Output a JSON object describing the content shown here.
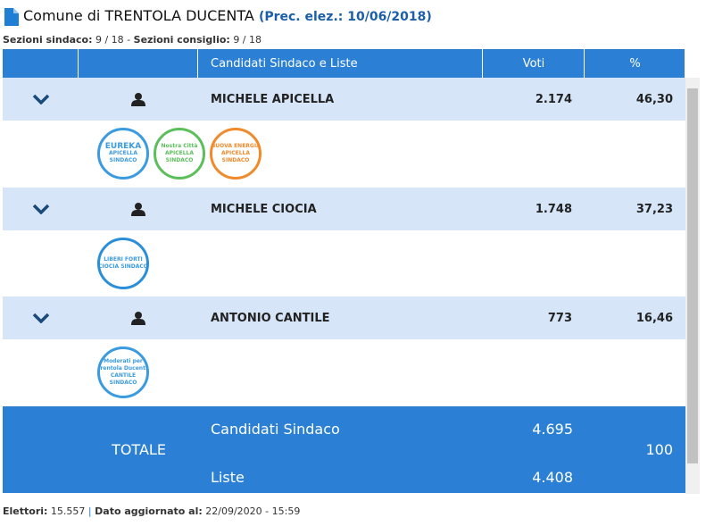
{
  "header": {
    "title": "Comune di TRENTOLA DUCENTA",
    "previous": "(Prec. elez.: 10/06/2018)"
  },
  "sections": {
    "mayor_label": "Sezioni sindaco:",
    "mayor_value": "9 / 18",
    "separator": "-",
    "council_label": "Sezioni consiglio:",
    "council_value": "9 / 18"
  },
  "table": {
    "columns": [
      "Candidati Sindaco e Liste",
      "Voti",
      "%"
    ],
    "rows": [
      {
        "name": "MICHELE APICELLA",
        "votes": "2.174",
        "percent": "46,30",
        "logos": [
          [
            "EUREKA",
            "APICELLA",
            "SINDACO"
          ],
          [
            "Nostra Città",
            "APICELLA",
            "SINDACO"
          ],
          [
            "NUOVA ENERGIA",
            "APICELLA",
            "SINDACO"
          ]
        ]
      },
      {
        "name": "MICHELE CIOCIA",
        "votes": "1.748",
        "percent": "37,23",
        "logos": [
          [
            "LIBERI FORTI",
            "CIOCIA SINDACO"
          ]
        ]
      },
      {
        "name": "ANTONIO CANTILE",
        "votes": "773",
        "percent": "16,46",
        "logos": [
          [
            "Moderati per",
            "Trentola Ducenta",
            "CANTILE",
            "SINDACO"
          ]
        ]
      }
    ],
    "total": {
      "label": "TOTALE",
      "candidates_label": "Candidati Sindaco",
      "candidates_votes": "4.695",
      "lists_label": "Liste",
      "lists_votes": "4.408",
      "percent": "100"
    }
  },
  "footer": {
    "voters_label": "Elettori:",
    "voters_value": "15.557",
    "separator": "|",
    "updated_label": "Dato aggiornato al:",
    "updated_value": "22/09/2020 - 15:59"
  }
}
